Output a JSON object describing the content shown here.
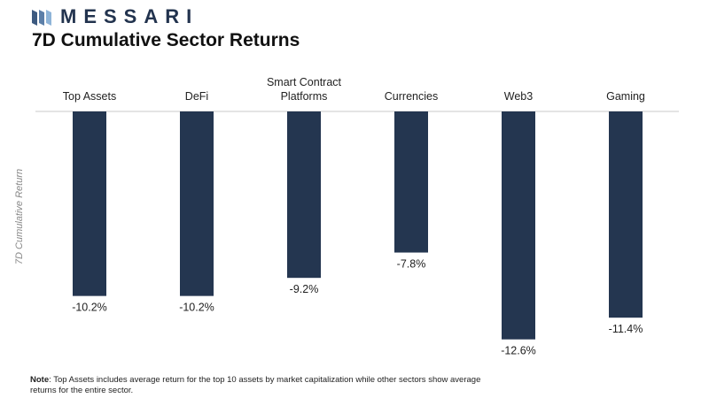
{
  "brand": {
    "name": "MESSARI"
  },
  "chart_data": {
    "type": "bar",
    "title": "7D Cumulative Sector Returns",
    "ylabel": "7D Cumulative Return",
    "xlabel": "",
    "categories": [
      "Top Assets",
      "DeFi",
      "Smart Contract Platforms",
      "Currencies",
      "Web3",
      "Gaming"
    ],
    "category_lines": [
      [
        "Top Assets"
      ],
      [
        "DeFi"
      ],
      [
        "Smart Contract",
        "Platforms"
      ],
      [
        "Currencies"
      ],
      [
        "Web3"
      ],
      [
        "Gaming"
      ]
    ],
    "values": [
      -10.2,
      -10.2,
      -9.2,
      -7.8,
      -12.6,
      -11.4
    ],
    "data_labels": [
      "-10.2%",
      "-10.2%",
      "-9.2%",
      "-7.8%",
      "-12.6%",
      "-11.4%"
    ],
    "ylim": [
      -13.2,
      0
    ],
    "grid": false,
    "legend": "none",
    "bar_color": "#243650",
    "axis_color": "#c8c8c8"
  },
  "note": {
    "label": "Note",
    "text": ": Top Assets includes average return for the top 10 assets by market capitalization while other sectors show average returns for the entire sector."
  }
}
